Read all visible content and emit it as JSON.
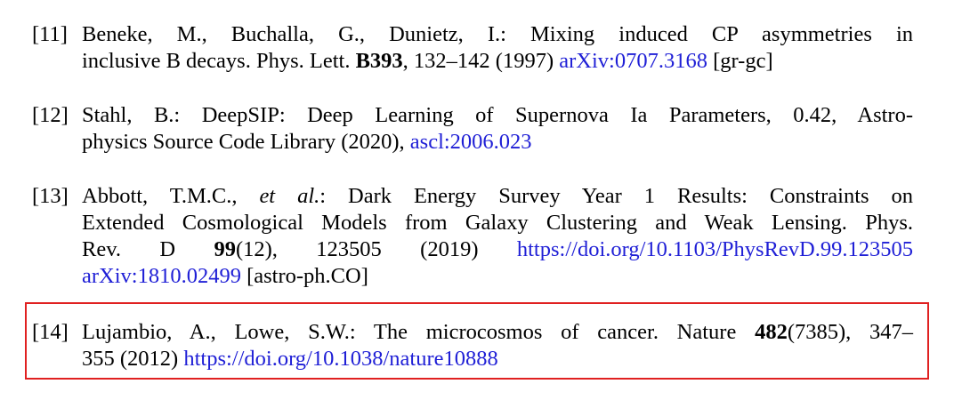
{
  "references": [
    {
      "label": "[11]",
      "lines": [
        {
          "parts": [
            {
              "t": "Beneke, M., Buchalla, G., Dunietz, I.: Mixing induced CP asymmetries in"
            }
          ]
        },
        {
          "parts": [
            {
              "t": "inclusive B decays. Phys. Lett. "
            },
            {
              "t": "B393",
              "style": "bold"
            },
            {
              "t": ", 132–142 (1997) "
            },
            {
              "t": "arXiv:0707.3168",
              "style": "link"
            },
            {
              "t": " [gr-gc]"
            }
          ]
        }
      ]
    },
    {
      "label": "[12]",
      "lines": [
        {
          "parts": [
            {
              "t": "Stahl, B.: DeepSIP: Deep Learning of Supernova Ia Parameters, 0.42, Astro-"
            }
          ]
        },
        {
          "parts": [
            {
              "t": "physics Source Code Library (2020), "
            },
            {
              "t": "ascl:2006.023",
              "style": "link"
            }
          ]
        }
      ]
    },
    {
      "label": "[13]",
      "lines": [
        {
          "parts": [
            {
              "t": "Abbott, T.M.C., "
            },
            {
              "t": "et al.",
              "style": "italic"
            },
            {
              "t": ": Dark Energy Survey Year 1 Results: Constraints on"
            }
          ]
        },
        {
          "parts": [
            {
              "t": "Extended Cosmological Models from Galaxy Clustering and Weak Lensing. Phys."
            }
          ]
        },
        {
          "parts": [
            {
              "t": "Rev. D "
            },
            {
              "t": "99",
              "style": "bold"
            },
            {
              "t": "(12), 123505 (2019) "
            },
            {
              "t": "https://doi.org/10.1103/PhysRevD.99.123505",
              "style": "link"
            }
          ]
        },
        {
          "parts": [
            {
              "t": "arXiv:1810.02499",
              "style": "link"
            },
            {
              "t": " [astro-ph.CO]"
            }
          ]
        }
      ]
    },
    {
      "label": "[14]",
      "lines": [
        {
          "parts": [
            {
              "t": "Lujambio, A., Lowe, S.W.: The microcosmos of cancer. Nature "
            },
            {
              "t": "482",
              "style": "bold"
            },
            {
              "t": "(7385), 347–"
            }
          ]
        },
        {
          "parts": [
            {
              "t": "355 (2012) "
            },
            {
              "t": "https://doi.org/10.1038/nature10888",
              "style": "link"
            }
          ]
        }
      ]
    }
  ],
  "highlight": {
    "reference_index": 3,
    "color": "#e02020"
  },
  "colors": {
    "link": "#1f1fd6",
    "text": "#000000",
    "background": "#ffffff"
  }
}
